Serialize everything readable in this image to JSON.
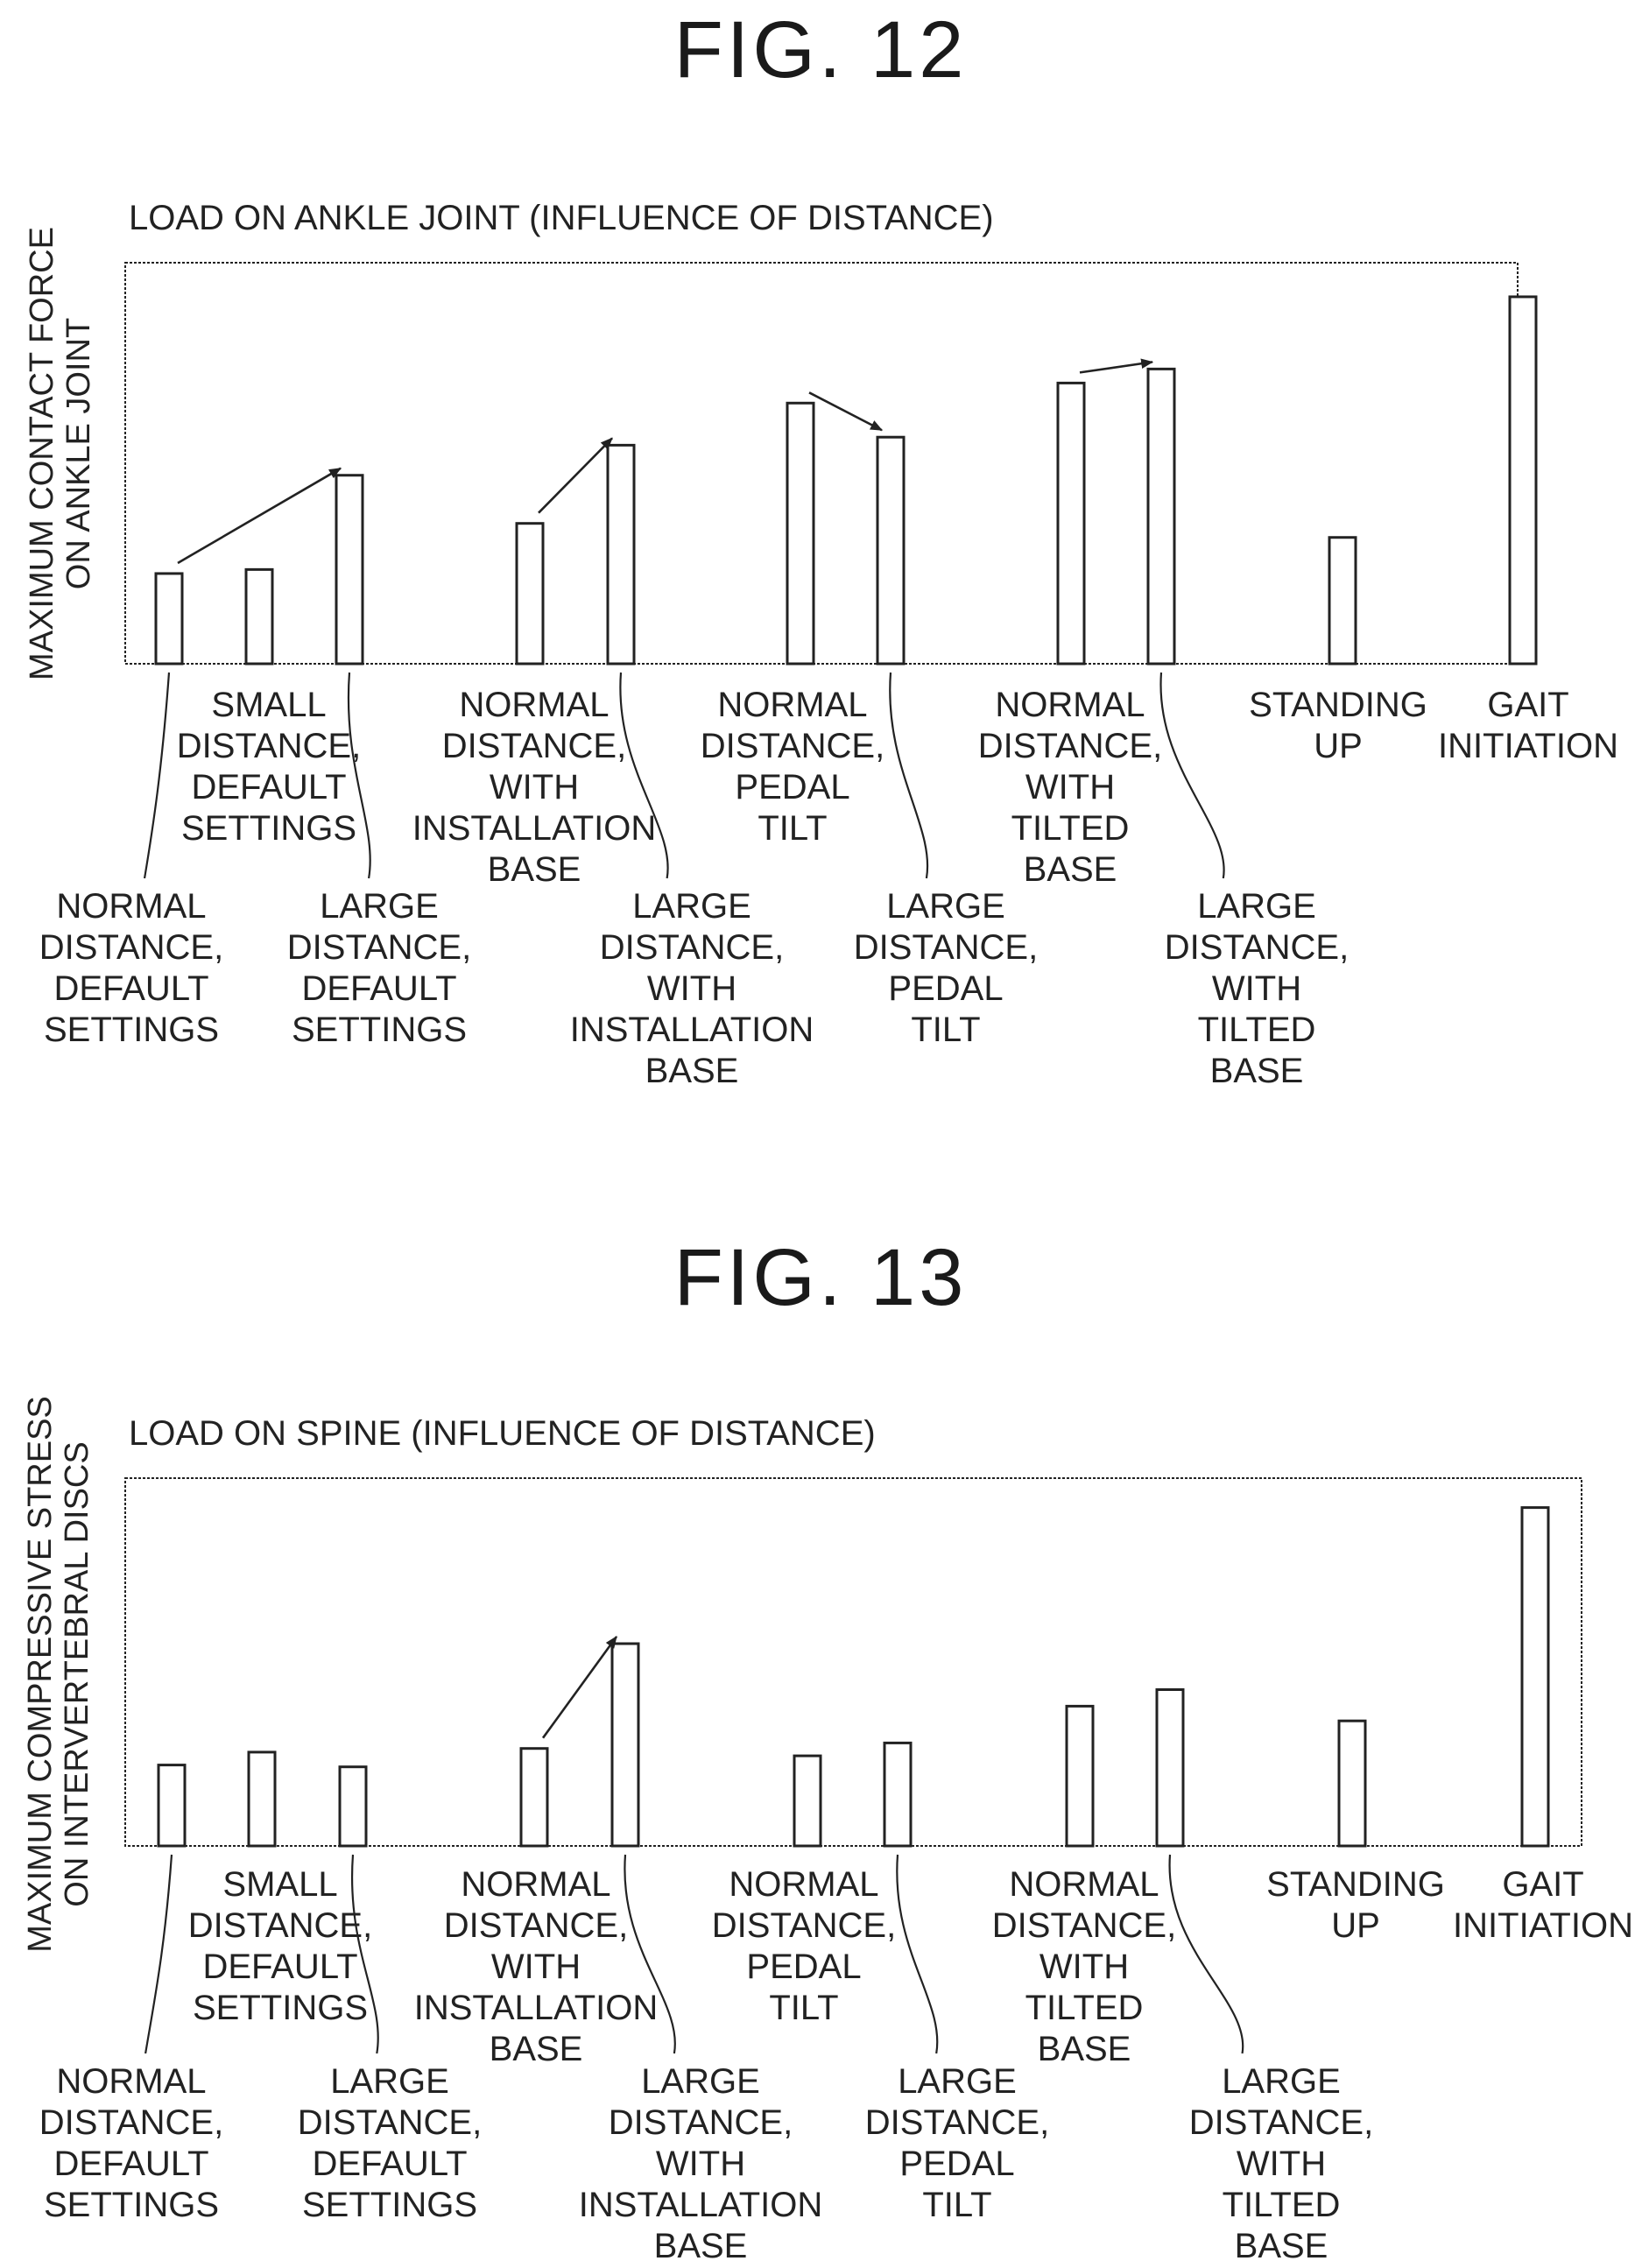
{
  "figures": [
    {
      "label": "FIG. 12"
    },
    {
      "label": "FIG. 13"
    }
  ],
  "chart_data": [
    {
      "type": "bar",
      "title": "LOAD ON ANKLE JOINT (INFLUENCE OF DISTANCE)",
      "ylabel": [
        "MAXIMUM CONTACT FORCE",
        "ON ANKLE JOINT"
      ],
      "xlabel": "",
      "ylim": [
        0,
        100
      ],
      "grid": false,
      "categories": [
        [
          "NORMAL",
          "DISTANCE,",
          "DEFAULT",
          "SETTINGS"
        ],
        [
          "SMALL",
          "DISTANCE,",
          "DEFAULT",
          "SETTINGS"
        ],
        [
          "LARGE",
          "DISTANCE,",
          "DEFAULT",
          "SETTINGS"
        ],
        [
          "NORMAL",
          "DISTANCE,",
          "WITH",
          "INSTALLATION",
          "BASE"
        ],
        [
          "LARGE",
          "DISTANCE,",
          "WITH",
          "INSTALLATION",
          "BASE"
        ],
        [
          "NORMAL",
          "DISTANCE,",
          "PEDAL",
          "TILT"
        ],
        [
          "LARGE",
          "DISTANCE,",
          "PEDAL",
          "TILT"
        ],
        [
          "NORMAL",
          "DISTANCE,",
          "WITH",
          "TILTED",
          "BASE"
        ],
        [
          "LARGE",
          "DISTANCE,",
          "WITH",
          "TILTED",
          "BASE"
        ],
        [
          "STANDING",
          "UP"
        ],
        [
          "GAIT",
          "INITIATION"
        ]
      ],
      "values": [
        22.5,
        23.5,
        47,
        35,
        54.5,
        65,
        56.5,
        70,
        73.5,
        31.5,
        91.5
      ],
      "arrows": [
        [
          0,
          2
        ],
        [
          3,
          4
        ],
        [
          5,
          6
        ],
        [
          7,
          8
        ]
      ]
    },
    {
      "type": "bar",
      "title": "LOAD ON SPINE (INFLUENCE OF DISTANCE)",
      "ylabel": [
        "MAXIMUM COMPRESSIVE STRESS",
        "ON INTERVERTEBRAL DISCS"
      ],
      "xlabel": "",
      "ylim": [
        0,
        100
      ],
      "grid": false,
      "categories": [
        [
          "NORMAL",
          "DISTANCE,",
          "DEFAULT",
          "SETTINGS"
        ],
        [
          "SMALL",
          "DISTANCE,",
          "DEFAULT",
          "SETTINGS"
        ],
        [
          "LARGE",
          "DISTANCE,",
          "DEFAULT",
          "SETTINGS"
        ],
        [
          "NORMAL",
          "DISTANCE,",
          "WITH",
          "INSTALLATION",
          "BASE"
        ],
        [
          "LARGE",
          "DISTANCE,",
          "WITH",
          "INSTALLATION",
          "BASE"
        ],
        [
          "NORMAL",
          "DISTANCE,",
          "PEDAL",
          "TILT"
        ],
        [
          "LARGE",
          "DISTANCE,",
          "PEDAL",
          "TILT"
        ],
        [
          "NORMAL",
          "DISTANCE,",
          "WITH",
          "TILTED",
          "BASE"
        ],
        [
          "LARGE",
          "DISTANCE,",
          "WITH",
          "TILTED",
          "BASE"
        ],
        [
          "STANDING",
          "UP"
        ],
        [
          "GAIT",
          "INITIATION"
        ]
      ],
      "values": [
        22,
        25.5,
        21.5,
        26.5,
        55,
        24.5,
        28,
        38,
        42.5,
        34,
        92
      ],
      "arrows": [
        [
          3,
          4
        ]
      ]
    }
  ]
}
